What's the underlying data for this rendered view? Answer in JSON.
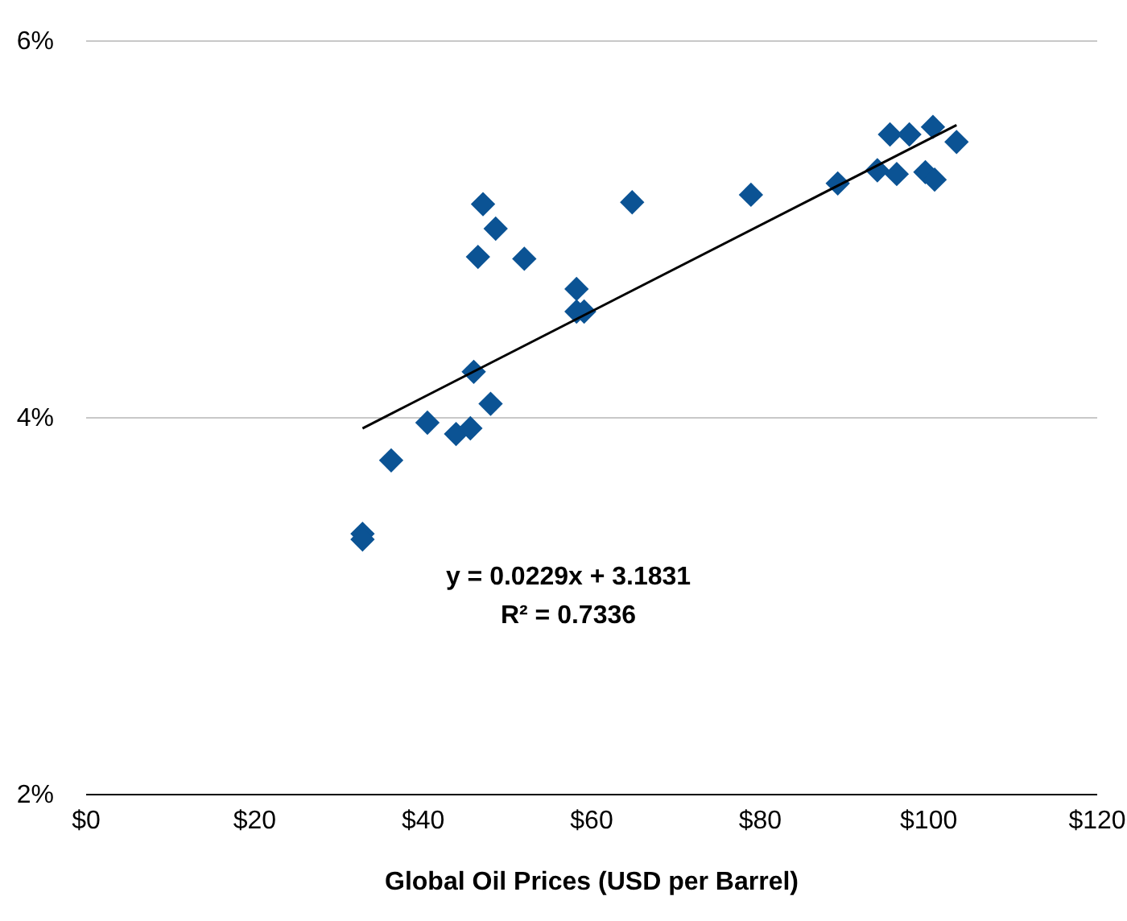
{
  "chart_data": {
    "type": "scatter",
    "xlabel": "Global Oil Prices (USD per Barrel)",
    "xlim": [
      0,
      120
    ],
    "ylim": [
      2,
      6
    ],
    "xticks": [
      {
        "value": 0,
        "label": "$0"
      },
      {
        "value": 20,
        "label": "$20"
      },
      {
        "value": 40,
        "label": "$40"
      },
      {
        "value": 60,
        "label": "$60"
      },
      {
        "value": 80,
        "label": "$80"
      },
      {
        "value": 100,
        "label": "$100"
      },
      {
        "value": 120,
        "label": "$120"
      }
    ],
    "yticks": [
      {
        "value": 2,
        "label": "2%"
      },
      {
        "value": 4,
        "label": "4%"
      },
      {
        "value": 6,
        "label": "6%"
      }
    ],
    "grid": "y",
    "series": [
      {
        "marker": "diamond",
        "color": "#0b5394",
        "x": [
          47.2,
          48.7,
          46.6,
          52.1,
          64.9,
          58.3,
          58.3,
          59.2,
          46.1,
          48.1,
          40.6,
          44.0,
          45.7,
          36.3,
          32.9,
          32.9,
          79.0,
          89.3,
          94.0,
          96.3,
          99.7,
          100.8,
          95.5,
          97.8,
          100.6,
          103.4
        ],
        "values": [
          5.13,
          5.0,
          4.85,
          4.84,
          5.14,
          4.68,
          4.56,
          4.56,
          4.24,
          4.07,
          3.97,
          3.91,
          3.94,
          3.77,
          3.38,
          3.35,
          5.18,
          5.24,
          5.31,
          5.29,
          5.3,
          5.26,
          5.5,
          5.5,
          5.54,
          5.46
        ]
      },
      {
        "type": "line",
        "color": "#000000",
        "x": [
          32.9,
          103.4
        ],
        "values": [
          3.94,
          5.55
        ]
      }
    ],
    "annotations": [
      "y = 0.0229x + 3.1831",
      "R² = 0.7336"
    ]
  }
}
